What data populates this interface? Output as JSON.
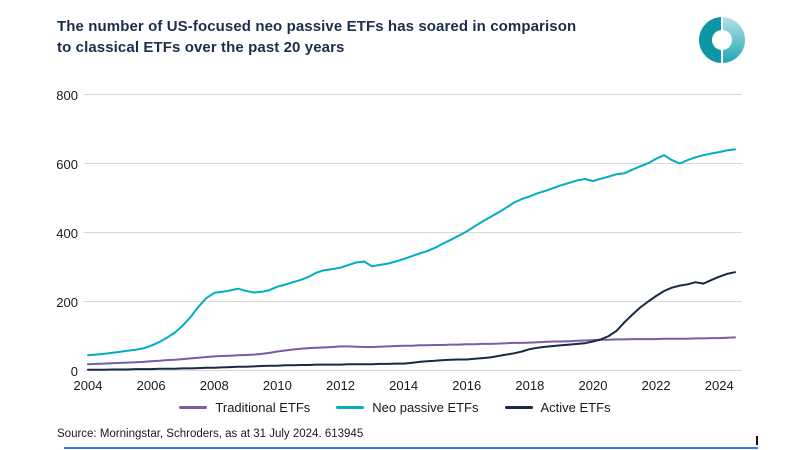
{
  "header": {
    "title_line1": "The number of US-focused neo passive ETFs has soared in comparison",
    "title_line2": "to classical ETFs over the past 20 years",
    "logo_name": "schroders-logo"
  },
  "source_note": "Source: Morningstar, Schroders, as at 31 July 2024. 613945",
  "colors": {
    "title": "#1B2E4B",
    "grid": "#D8D8D8",
    "axis_text": "#1A1A1A",
    "traditional": "#7A5CA8",
    "neo_passive": "#00AEC3",
    "active": "#182A45",
    "logo_left": "#0D96A3",
    "logo_right_top": "#B7E2E6",
    "logo_right_bottom": "#1FA7B4",
    "selection_blue": "#3F7DE0"
  },
  "chart_data": {
    "type": "line",
    "title": "The number of US-focused neo passive ETFs has soared in comparison to classical ETFs over the past 20 years",
    "xlabel": "",
    "ylabel": "",
    "xlim": [
      2004,
      2024.5
    ],
    "ylim": [
      0,
      800
    ],
    "yticks": [
      800,
      600,
      400,
      200,
      0
    ],
    "xticks": [
      2004,
      2006,
      2008,
      2010,
      2012,
      2014,
      2016,
      2018,
      2020,
      2022,
      2024
    ],
    "grid": "horizontal",
    "legend_position": "bottom",
    "x_start": 2004,
    "x_step": 0.25,
    "series": [
      {
        "name": "Traditional ETFs",
        "color": "#7A5CA8",
        "values": [
          18,
          19,
          20,
          21,
          22,
          23,
          24,
          25,
          27,
          28,
          30,
          31,
          33,
          35,
          37,
          39,
          41,
          42,
          43,
          44,
          45,
          46,
          48,
          51,
          55,
          58,
          61,
          63,
          65,
          66,
          67,
          68,
          70,
          70,
          69,
          68,
          68,
          69,
          70,
          71,
          72,
          72,
          73,
          73,
          74,
          74,
          75,
          75,
          76,
          76,
          77,
          77,
          78,
          79,
          80,
          80,
          81,
          82,
          83,
          84,
          84,
          85,
          86,
          87,
          88,
          89,
          89,
          90,
          90,
          91,
          91,
          91,
          91,
          92,
          92,
          92,
          92,
          93,
          93,
          94,
          94,
          95,
          96
        ]
      },
      {
        "name": "Neo passive ETFs",
        "color": "#00AEC3",
        "values": [
          44,
          46,
          48,
          51,
          54,
          57,
          60,
          64,
          72,
          82,
          95,
          110,
          130,
          155,
          185,
          210,
          225,
          228,
          232,
          237,
          231,
          226,
          228,
          233,
          243,
          249,
          256,
          263,
          272,
          284,
          291,
          294,
          298,
          306,
          313,
          316,
          302,
          306,
          310,
          316,
          323,
          331,
          339,
          346,
          356,
          368,
          379,
          391,
          403,
          418,
          432,
          445,
          458,
          472,
          487,
          497,
          505,
          514,
          521,
          529,
          537,
          544,
          551,
          555,
          549,
          556,
          562,
          569,
          572,
          582,
          592,
          601,
          614,
          624,
          610,
          600,
          610,
          618,
          624,
          629,
          633,
          638,
          641
        ]
      },
      {
        "name": "Active ETFs",
        "color": "#182A45",
        "values": [
          2,
          2,
          2,
          3,
          3,
          3,
          4,
          4,
          4,
          5,
          5,
          5,
          6,
          6,
          7,
          8,
          8,
          9,
          10,
          11,
          11,
          12,
          13,
          14,
          14,
          15,
          15,
          16,
          16,
          17,
          17,
          17,
          17,
          18,
          18,
          18,
          18,
          19,
          19,
          20,
          20,
          22,
          25,
          27,
          28,
          30,
          31,
          32,
          32,
          34,
          36,
          38,
          42,
          46,
          50,
          55,
          62,
          66,
          69,
          71,
          73,
          75,
          77,
          79,
          84,
          90,
          100,
          115,
          140,
          162,
          183,
          200,
          216,
          230,
          240,
          246,
          250,
          256,
          252,
          262,
          272,
          280,
          285
        ]
      }
    ]
  }
}
